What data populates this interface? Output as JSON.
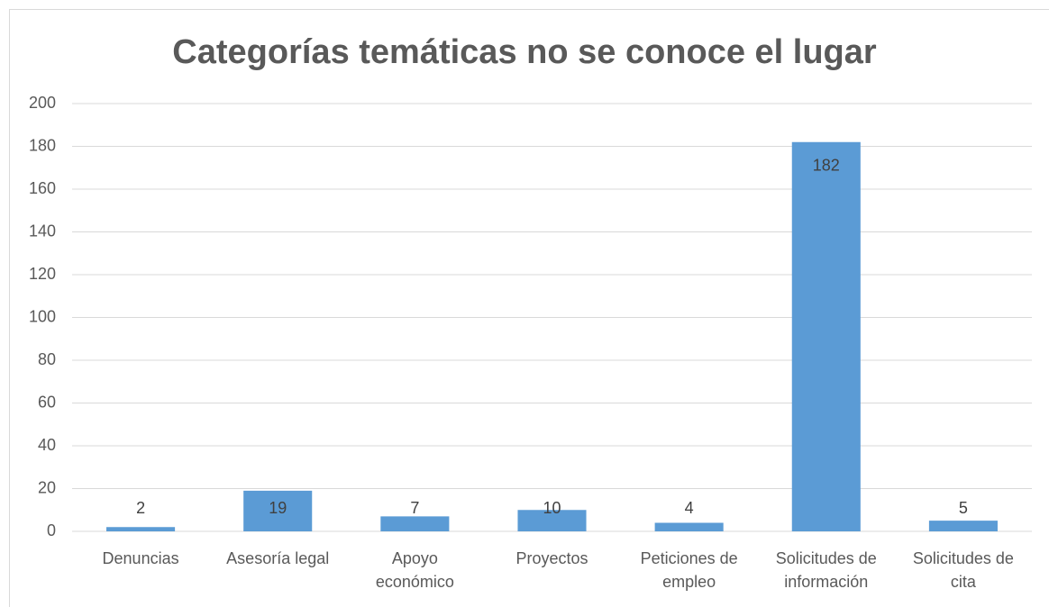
{
  "chart_data": {
    "type": "bar",
    "title": "Categorías temáticas no se conoce el lugar",
    "categories": [
      "Denuncias",
      "Asesoría legal",
      "Apoyo económico",
      "Proyectos",
      "Peticiones de empleo",
      "Solicitudes de información",
      "Solicitudes de cita"
    ],
    "values": [
      2,
      19,
      7,
      10,
      4,
      182,
      5
    ],
    "color": "#5b9bd5",
    "ylim": [
      0,
      200
    ],
    "yticks": [
      0,
      20,
      40,
      60,
      80,
      100,
      120,
      140,
      160,
      180,
      200
    ],
    "grid": true
  }
}
